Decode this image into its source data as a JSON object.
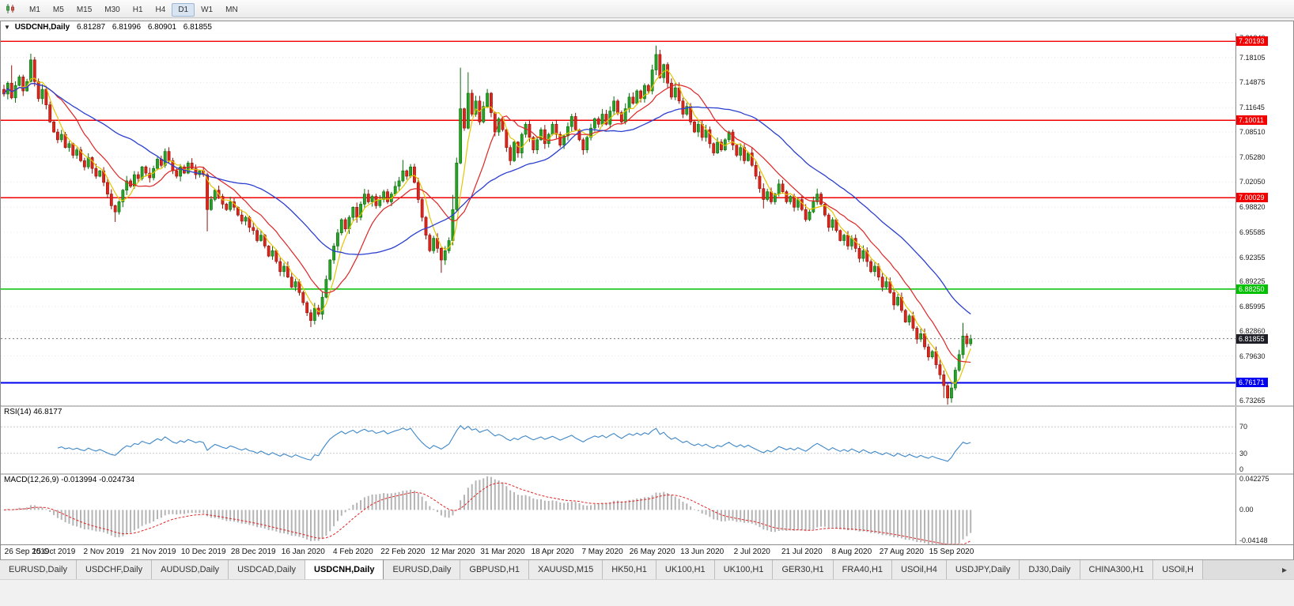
{
  "toolbar": {
    "timeframes": [
      "M1",
      "M5",
      "M15",
      "M30",
      "H1",
      "H4",
      "D1",
      "W1",
      "MN"
    ],
    "active": "D1"
  },
  "chart": {
    "title": "USDCNH,Daily",
    "ohlc": {
      "open": "6.81287",
      "high": "6.81996",
      "low": "6.80901",
      "close": "6.81855"
    },
    "price_axis": {
      "ticks": [
        "7.21240",
        "7.18105",
        "7.14875",
        "7.11645",
        "7.08510",
        "7.05280",
        "7.02050",
        "6.98820",
        "6.95585",
        "6.92355",
        "6.89225",
        "6.85995",
        "6.82860",
        "6.79630",
        "6.73265"
      ]
    }
  },
  "rsi": {
    "label": "RSI(14)",
    "value": "46.8177",
    "levels": [
      70,
      30
    ],
    "ticks": [
      {
        "label": "70",
        "value": 70
      },
      {
        "label": "30",
        "value": 30
      },
      {
        "label": "0",
        "value": 0
      }
    ]
  },
  "macd": {
    "label": "MACD(12,26,9)",
    "value_main": "-0.013994",
    "value_signal": "-0.024734",
    "ticks": [
      {
        "label": "0.042275",
        "value": 0.042275
      },
      {
        "label": "0.00",
        "value": 0
      },
      {
        "label": "-0.04148",
        "value": -0.04148
      }
    ]
  },
  "tabs": [
    {
      "label": "EURUSD,Daily"
    },
    {
      "label": "USDCHF,Daily"
    },
    {
      "label": "AUDUSD,Daily"
    },
    {
      "label": "USDCAD,Daily"
    },
    {
      "label": "USDCNH,Daily",
      "active": true
    },
    {
      "label": "EURUSD,Daily"
    },
    {
      "label": "GBPUSD,H1"
    },
    {
      "label": "XAUUSD,M15"
    },
    {
      "label": "HK50,H1"
    },
    {
      "label": "UK100,H1"
    },
    {
      "label": "UK100,H1"
    },
    {
      "label": "GER30,H1"
    },
    {
      "label": "FRA40,H1"
    },
    {
      "label": "USOil,H4"
    },
    {
      "label": "USDJPY,Daily"
    },
    {
      "label": "DJ30,Daily"
    },
    {
      "label": "CHINA300,H1"
    },
    {
      "label": "USOil,H"
    }
  ],
  "tab_scroll_arrow": "▸",
  "chart_data": {
    "type": "candlestick",
    "symbol": "USDCNH",
    "timeframe": "Daily",
    "y_range": [
      6.73265,
      7.2124
    ],
    "x_labels": [
      "26 Sep 2019",
      "15 Oct 2019",
      "2 Nov 2019",
      "21 Nov 2019",
      "10 Dec 2019",
      "28 Dec 2019",
      "16 Jan 2020",
      "4 Feb 2020",
      "22 Feb 2020",
      "12 Mar 2020",
      "31 Mar 2020",
      "18 Apr 2020",
      "7 May 2020",
      "26 May 2020",
      "13 Jun 2020",
      "2 Jul 2020",
      "21 Jul 2020",
      "8 Aug 2020",
      "27 Aug 2020",
      "15 Sep 2020"
    ],
    "bars_per_label": 13,
    "hlines": [
      {
        "price": 7.20193,
        "label": "7.20193",
        "color": "#f20000",
        "width": 1.4
      },
      {
        "price": 7.10011,
        "label": "7.10011",
        "color": "#f20000",
        "width": 1.4
      },
      {
        "price": 7.00029,
        "label": "7.00029",
        "color": "#f20000",
        "width": 1.4
      },
      {
        "price": 6.8825,
        "label": "6.88250",
        "color": "#00c000",
        "width": 1.4
      },
      {
        "price": 6.76171,
        "label": "6.76171",
        "color": "#0000f0",
        "width": 2
      }
    ],
    "current_price": 6.81855,
    "moving_averages": [
      {
        "period": 5,
        "color": "#e5c502"
      },
      {
        "period": 13,
        "color": "#e02424"
      },
      {
        "period": 34,
        "color": "#2b3fd0"
      }
    ],
    "rsi_period": 14,
    "macd_params": [
      12,
      26,
      9
    ],
    "closes": [
      7.134,
      7.148,
      7.129,
      7.145,
      7.156,
      7.138,
      7.15,
      7.178,
      7.15,
      7.128,
      7.14,
      7.12,
      7.098,
      7.085,
      7.075,
      7.082,
      7.065,
      7.07,
      7.055,
      7.062,
      7.048,
      7.04,
      7.052,
      7.038,
      7.028,
      7.035,
      7.02,
      7.005,
      6.99,
      6.982,
      6.995,
      7.01,
      7.022,
      7.015,
      7.03,
      7.025,
      7.04,
      7.032,
      7.026,
      7.038,
      7.05,
      7.042,
      7.06,
      7.048,
      7.035,
      7.028,
      7.04,
      7.032,
      7.045,
      7.038,
      7.03,
      7.035,
      7.03,
      6.985,
      6.998,
      7.01,
      7.002,
      6.992,
      6.985,
      6.995,
      6.988,
      6.978,
      6.97,
      6.975,
      6.962,
      6.958,
      6.945,
      6.952,
      6.938,
      6.925,
      6.932,
      6.918,
      6.905,
      6.912,
      6.898,
      6.885,
      6.892,
      6.878,
      6.865,
      6.852,
      6.842,
      6.858,
      6.85,
      6.872,
      6.895,
      6.92,
      6.938,
      6.955,
      6.972,
      6.96,
      6.975,
      6.988,
      6.975,
      6.992,
      7.005,
      6.995,
      7.002,
      6.99,
      6.998,
      7.008,
      6.995,
      7.005,
      7.015,
      7.022,
      7.035,
      7.028,
      7.04,
      7.02,
      6.998,
      6.975,
      6.952,
      6.932,
      6.948,
      6.935,
      6.92,
      6.932,
      6.945,
      6.985,
      7.045,
      7.115,
      7.09,
      7.135,
      7.108,
      7.125,
      7.098,
      7.118,
      7.135,
      7.11,
      7.085,
      7.102,
      7.088,
      7.065,
      7.048,
      7.072,
      7.058,
      7.082,
      7.095,
      7.078,
      7.062,
      7.075,
      7.088,
      7.07,
      7.082,
      7.095,
      7.082,
      7.068,
      7.08,
      7.092,
      7.105,
      7.088,
      7.075,
      7.062,
      7.078,
      7.09,
      7.102,
      7.095,
      7.108,
      7.095,
      7.112,
      7.125,
      7.11,
      7.098,
      7.115,
      7.13,
      7.122,
      7.138,
      7.128,
      7.145,
      7.138,
      7.165,
      7.185,
      7.155,
      7.172,
      7.148,
      7.13,
      7.142,
      7.125,
      7.108,
      7.118,
      7.098,
      7.085,
      7.095,
      7.078,
      7.088,
      7.07,
      7.058,
      7.072,
      7.062,
      7.075,
      7.085,
      7.068,
      7.055,
      7.065,
      7.048,
      7.058,
      7.042,
      7.028,
      7.012,
      6.998,
      7.008,
      6.995,
      7.005,
      7.018,
      7.008,
      6.995,
      7.002,
      6.988,
      6.998,
      6.985,
      6.972,
      6.982,
      6.995,
      7.005,
      6.992,
      6.978,
      6.962,
      6.972,
      6.958,
      6.945,
      6.952,
      6.938,
      6.948,
      6.935,
      6.922,
      6.932,
      6.918,
      6.905,
      6.912,
      6.898,
      6.885,
      6.892,
      6.878,
      6.862,
      6.872,
      6.855,
      6.84,
      6.848,
      6.832,
      6.818,
      6.825,
      6.808,
      6.795,
      6.802,
      6.785,
      6.772,
      6.758,
      6.742,
      6.755,
      6.778,
      6.798,
      6.822,
      6.812,
      6.8186
    ],
    "high_overrides": {
      "2": 7.171,
      "7": 7.186,
      "104": 7.049,
      "117": 7.004,
      "118": 7.052,
      "119": 7.168,
      "121": 7.162,
      "170": 7.1964,
      "250": 6.839
    },
    "low_overrides": {
      "29": 6.969,
      "53": 6.957,
      "80": 6.8335,
      "114": 6.9035,
      "198": 6.9865,
      "245": 6.742,
      "246": 6.7335,
      "247": 6.736
    }
  }
}
